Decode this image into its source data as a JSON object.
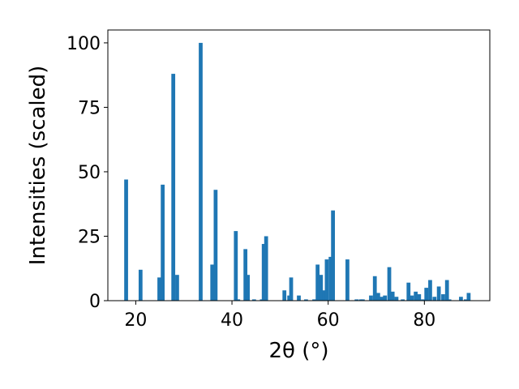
{
  "chart_data": {
    "type": "bar",
    "title": "",
    "xlabel": "2θ (°)",
    "ylabel": "Intensities (scaled)",
    "xlim": [
      14.2,
      93.6
    ],
    "ylim": [
      0,
      105
    ],
    "xticks": [
      20,
      40,
      60,
      80
    ],
    "yticks": [
      0,
      25,
      50,
      75,
      100
    ],
    "grid": false,
    "bar_width": 0.8,
    "color": "#1f77b4",
    "x": [
      18.0,
      21.0,
      24.9,
      25.6,
      27.8,
      28.6,
      33.5,
      35.9,
      36.6,
      40.8,
      41.3,
      42.8,
      43.3,
      44.6,
      46.2,
      46.6,
      47.1,
      50.9,
      51.9,
      52.3,
      53.9,
      55.4,
      57.1,
      57.8,
      58.5,
      59.2,
      59.7,
      60.5,
      61.0,
      64.0,
      65.9,
      66.8,
      67.2,
      68.9,
      69.7,
      70.4,
      71.1,
      71.8,
      72.7,
      73.4,
      74.2,
      75.5,
      76.7,
      77.4,
      78.2,
      78.9,
      79.7,
      80.4,
      81.2,
      82.1,
      83.0,
      83.9,
      84.7,
      85.2,
      87.6,
      88.6,
      89.2
    ],
    "values": [
      47,
      12,
      9,
      45,
      88,
      10,
      100,
      14,
      43,
      27,
      0.5,
      20,
      10,
      0.5,
      0.5,
      22,
      25,
      4,
      2,
      9,
      2,
      0.5,
      0.5,
      14,
      10,
      4,
      16,
      17,
      35,
      16,
      0.5,
      0.5,
      0.5,
      2,
      9.5,
      3,
      1.5,
      2,
      13,
      3.5,
      1.5,
      0.5,
      7,
      2,
      3.5,
      2.5,
      0.5,
      5,
      8,
      1.5,
      5.5,
      2.5,
      8,
      0.5,
      1.5,
      0.5,
      3
    ]
  }
}
